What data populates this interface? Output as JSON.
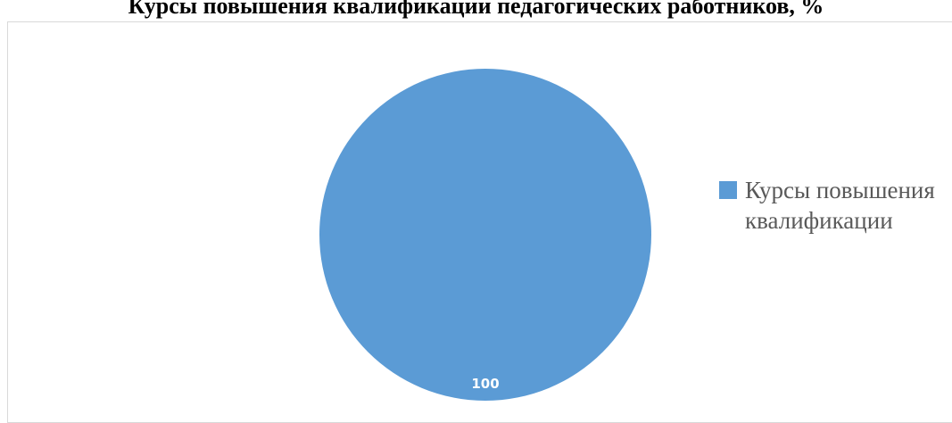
{
  "chart_data": {
    "type": "pie",
    "title": "Курсы повышения квалификации педагогических работников, %",
    "categories": [
      "Курсы повышения квалификации"
    ],
    "values": [
      100
    ],
    "data_labels": [
      "100"
    ],
    "colors": [
      "#5b9bd5"
    ],
    "legend_position": "right"
  }
}
